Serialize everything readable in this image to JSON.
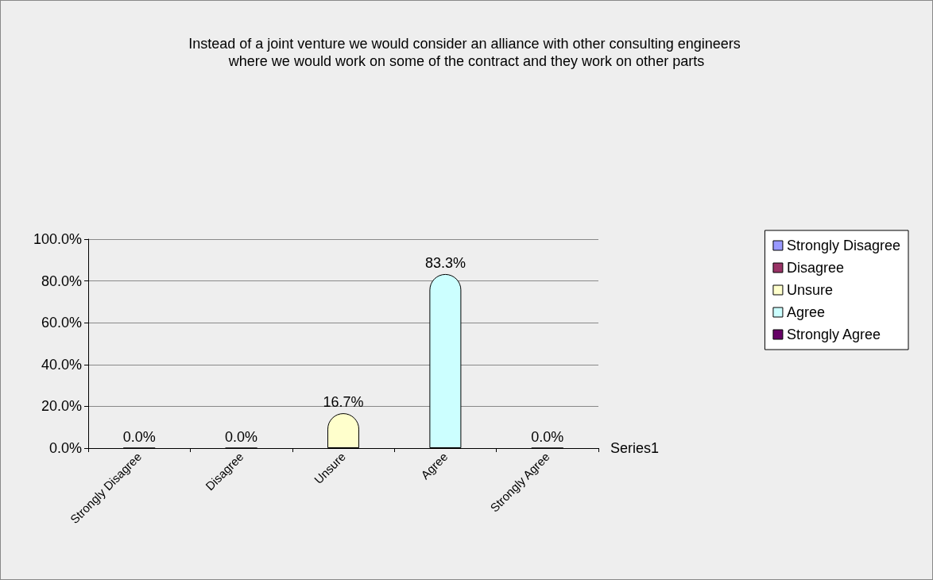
{
  "chart_data": {
    "type": "bar",
    "title": "Instead of a joint venture we would consider an alliance with other consulting engineers where we would work on some of the contract and they work on other parts",
    "xlabel": "Series1",
    "categories": [
      "Strongly Disagree",
      "Disagree",
      "Unsure",
      "Agree",
      "Strongly Agree"
    ],
    "series": [
      {
        "name": "Strongly Disagree",
        "color": "#9999ff",
        "values": [
          0,
          null,
          null,
          null,
          null
        ],
        "value_labels": [
          "0.0%",
          null,
          null,
          null,
          null
        ]
      },
      {
        "name": "Disagree",
        "color": "#993366",
        "values": [
          null,
          0,
          null,
          null,
          null
        ],
        "value_labels": [
          null,
          "0.0%",
          null,
          null,
          null
        ]
      },
      {
        "name": "Unsure",
        "color": "#ffffcc",
        "values": [
          null,
          null,
          16.7,
          null,
          null
        ],
        "value_labels": [
          null,
          null,
          "16.7%",
          null,
          null
        ]
      },
      {
        "name": "Agree",
        "color": "#ccffff",
        "values": [
          null,
          null,
          null,
          83.3,
          null
        ],
        "value_labels": [
          null,
          null,
          null,
          "83.3%",
          null
        ]
      },
      {
        "name": "Strongly Agree",
        "color": "#660066",
        "values": [
          null,
          null,
          null,
          null,
          0
        ],
        "value_labels": [
          null,
          null,
          null,
          null,
          "0.0%"
        ]
      }
    ],
    "ylim": [
      0,
      100
    ],
    "yticks": [
      {
        "value": 0,
        "label": "0.0%"
      },
      {
        "value": 20,
        "label": "20.0%"
      },
      {
        "value": 40,
        "label": "40.0%"
      },
      {
        "value": 60,
        "label": "60.0%"
      },
      {
        "value": 80,
        "label": "80.0%"
      },
      {
        "value": 100,
        "label": "100.0%"
      }
    ],
    "grid": "y",
    "legend": "right"
  }
}
